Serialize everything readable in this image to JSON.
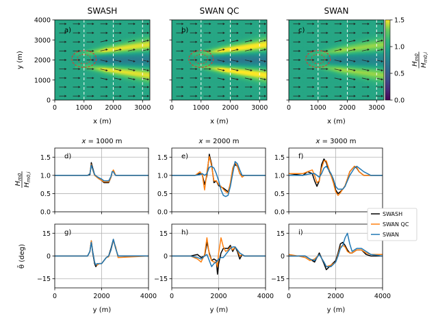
{
  "chart_data": [
    {
      "type": "heatmap",
      "panel": "a)",
      "title": "SWASH",
      "xlabel": "x (m)",
      "ylabel": "y (m)",
      "xlim": [
        0,
        3250
      ],
      "ylim": [
        0,
        4000
      ],
      "xticks": [
        0,
        1000,
        2000,
        3000
      ],
      "yticks": [
        0,
        1000,
        2000,
        3000,
        4000
      ],
      "ytick_labels": [
        "0",
        "1000",
        "2000",
        "3000",
        "4000"
      ],
      "x_ref_lines": [
        1000,
        2000,
        3000
      ],
      "eddy_center": [
        1000,
        2050
      ],
      "eddy_radius": 420,
      "jet_amp": 0.5
    },
    {
      "type": "heatmap",
      "panel": "b)",
      "title": "SWAN QC",
      "xlabel": "x (m)",
      "xlim": [
        0,
        3250
      ],
      "ylim": [
        0,
        4000
      ],
      "xticks": [
        0,
        1000,
        2000,
        3000
      ],
      "x_ref_lines": [
        1000,
        2000,
        3000
      ],
      "eddy_center": [
        1000,
        2050
      ],
      "eddy_radius": 420,
      "jet_amp": 0.55
    },
    {
      "type": "heatmap",
      "panel": "c)",
      "title": "SWAN",
      "xlabel": "x (m)",
      "xlim": [
        0,
        3250
      ],
      "ylim": [
        0,
        4000
      ],
      "xticks": [
        0,
        1000,
        2000,
        3000
      ],
      "x_ref_lines": [
        1000,
        2000,
        3000
      ],
      "eddy_center": [
        1000,
        2050
      ],
      "eddy_radius": 420,
      "jet_amp": 0.4
    },
    {
      "type": "colorbar",
      "label": "Hm0 / Hm0,i",
      "label_num": "H",
      "label_num_sub": "m0",
      "label_den": "H",
      "label_den_sub": "m0,i",
      "range": [
        0,
        1.5
      ],
      "ticks": [
        "0.0",
        "0.5",
        "1.0",
        "1.5"
      ],
      "colormap": "viridis"
    },
    {
      "type": "line",
      "panel": "d)",
      "title": "x = 1000 m",
      "title_var": "x",
      "title_rest": " = 1000 m",
      "ylabel_num": "H",
      "ylabel_num_sub": "m0",
      "ylabel_den": "H",
      "ylabel_den_sub": "m0,i",
      "xlim": [
        0,
        4000
      ],
      "ylim": [
        0,
        1.75
      ],
      "yticks": [
        "0.0",
        "0.5",
        "1.0",
        "1.5"
      ],
      "x": [
        0,
        1200,
        1400,
        1500,
        1560,
        1620,
        1700,
        1800,
        1900,
        2000,
        2100,
        2300,
        2400,
        2450,
        2500,
        2550,
        2600,
        2700,
        4000
      ],
      "series": [
        {
          "name": "SWASH",
          "values": [
            1.0,
            1.0,
            1.0,
            1.02,
            1.35,
            1.2,
            1.02,
            0.95,
            0.9,
            0.86,
            0.8,
            0.8,
            0.95,
            1.1,
            1.12,
            1.05,
            1.0,
            1.0,
            1.0
          ]
        },
        {
          "name": "SWAN QC",
          "values": [
            1.0,
            1.0,
            1.0,
            1.05,
            1.3,
            1.15,
            1.0,
            0.95,
            0.9,
            0.86,
            0.82,
            0.82,
            0.95,
            1.08,
            1.15,
            1.08,
            1.0,
            1.0,
            1.0
          ]
        },
        {
          "name": "SWAN",
          "values": [
            1.0,
            1.0,
            1.0,
            1.04,
            1.28,
            1.17,
            1.02,
            0.97,
            0.93,
            0.9,
            0.85,
            0.85,
            0.97,
            1.1,
            1.1,
            1.04,
            1.0,
            1.0,
            1.0
          ]
        }
      ]
    },
    {
      "type": "line",
      "panel": "e)",
      "title": "x = 2000 m",
      "title_var": "x",
      "title_rest": " = 2000 m",
      "xlim": [
        0,
        4000
      ],
      "ylim": [
        0,
        1.75
      ],
      "x": [
        0,
        1000,
        1200,
        1300,
        1400,
        1500,
        1600,
        1700,
        1800,
        1900,
        2000,
        2100,
        2200,
        2300,
        2400,
        2500,
        2600,
        2700,
        2800,
        2900,
        3000,
        3100,
        3200,
        3500,
        4000
      ],
      "series": [
        {
          "name": "SWASH",
          "values": [
            1.0,
            1.0,
            1.05,
            1.02,
            0.75,
            1.0,
            1.58,
            1.3,
            0.8,
            0.85,
            0.72,
            0.68,
            0.65,
            0.6,
            0.55,
            0.75,
            1.15,
            1.3,
            1.25,
            1.05,
            1.0,
            1.0,
            1.0,
            1.0,
            1.0
          ]
        },
        {
          "name": "SWAN QC",
          "values": [
            1.0,
            1.0,
            1.1,
            1.02,
            0.6,
            1.1,
            1.52,
            1.25,
            0.85,
            0.85,
            0.75,
            0.7,
            0.62,
            0.55,
            0.52,
            0.8,
            1.2,
            1.35,
            1.25,
            1.05,
            0.95,
            1.0,
            1.0,
            1.0,
            1.0
          ]
        },
        {
          "name": "SWAN",
          "values": [
            1.0,
            1.0,
            1.02,
            1.05,
            1.0,
            1.05,
            1.22,
            1.25,
            1.2,
            1.05,
            0.85,
            0.6,
            0.45,
            0.42,
            0.45,
            0.7,
            1.05,
            1.38,
            1.32,
            1.15,
            1.0,
            1.0,
            1.0,
            1.0,
            1.0
          ]
        }
      ]
    },
    {
      "type": "line",
      "panel": "f)",
      "title": "x = 3000 m",
      "title_var": "x",
      "title_rest": " = 3000 m",
      "xlim": [
        0,
        4000
      ],
      "ylim": [
        0,
        1.75
      ],
      "x": [
        0,
        600,
        800,
        1000,
        1100,
        1200,
        1300,
        1400,
        1500,
        1600,
        1700,
        1800,
        1900,
        2000,
        2100,
        2200,
        2300,
        2400,
        2500,
        2600,
        2800,
        2900,
        3000,
        3200,
        3500,
        4000
      ],
      "series": [
        {
          "name": "SWASH",
          "values": [
            1.05,
            1.0,
            1.1,
            1.05,
            0.85,
            0.7,
            0.85,
            1.3,
            1.45,
            1.35,
            1.15,
            1.0,
            0.85,
            0.6,
            0.5,
            0.55,
            0.62,
            0.7,
            0.9,
            1.1,
            1.25,
            1.2,
            1.1,
            1.0,
            1.0,
            1.0
          ]
        },
        {
          "name": "SWAN QC",
          "values": [
            1.05,
            1.05,
            1.1,
            1.15,
            1.0,
            0.8,
            0.85,
            1.2,
            1.4,
            1.4,
            1.2,
            1.0,
            0.8,
            0.55,
            0.45,
            0.52,
            0.62,
            0.72,
            0.9,
            1.1,
            1.25,
            1.22,
            1.1,
            1.0,
            1.0,
            1.0
          ]
        },
        {
          "name": "SWAN",
          "values": [
            1.0,
            1.0,
            1.03,
            1.05,
            1.05,
            1.0,
            0.95,
            1.05,
            1.2,
            1.25,
            1.15,
            1.05,
            0.9,
            0.7,
            0.62,
            0.62,
            0.62,
            0.7,
            0.85,
            1.0,
            1.2,
            1.25,
            1.2,
            1.1,
            1.0,
            1.0
          ]
        }
      ]
    },
    {
      "type": "line",
      "panel": "g)",
      "ylabel": "θ̄ (deg)",
      "xlabel": "y (m)",
      "xlim": [
        0,
        4000
      ],
      "ylim": [
        -21,
        21
      ],
      "yticks": [
        "−15",
        "0",
        "15"
      ],
      "xticks": [
        "0",
        "2000",
        "4000"
      ],
      "x": [
        0,
        1200,
        1400,
        1500,
        1560,
        1620,
        1700,
        1750,
        1800,
        1900,
        2000,
        2100,
        2200,
        2300,
        2400,
        2500,
        2600,
        2700,
        4000
      ],
      "series": [
        {
          "name": "SWASH",
          "values": [
            0,
            0,
            0,
            3,
            10,
            2,
            -5,
            -7,
            -6,
            -5,
            -5,
            -3,
            -1,
            0,
            5,
            11,
            5,
            0,
            0
          ]
        },
        {
          "name": "SWAN QC",
          "values": [
            0,
            0,
            0,
            3,
            10,
            3,
            -4,
            -6,
            -6,
            -5,
            -5,
            -3,
            -1,
            -0.5,
            4,
            10,
            6,
            -1,
            0
          ]
        },
        {
          "name": "SWAN",
          "values": [
            0,
            0,
            0,
            3,
            9,
            3,
            -4,
            -6,
            -5,
            -5,
            -5,
            -3,
            -1,
            0,
            4,
            11,
            5,
            0,
            0
          ]
        }
      ]
    },
    {
      "type": "line",
      "panel": "h)",
      "xlabel": "y (m)",
      "xlim": [
        0,
        4000
      ],
      "ylim": [
        -21,
        21
      ],
      "xticks": [
        "0",
        "2000",
        "4000"
      ],
      "x": [
        0,
        800,
        1100,
        1250,
        1400,
        1500,
        1600,
        1700,
        1800,
        1900,
        1950,
        2000,
        2100,
        2200,
        2300,
        2400,
        2500,
        2600,
        2700,
        2800,
        2900,
        3000,
        3100,
        3500,
        4000
      ],
      "series": [
        {
          "name": "SWASH",
          "values": [
            0,
            0,
            1,
            -1,
            0,
            9,
            2,
            -3,
            -2,
            -3,
            -12,
            -5,
            2,
            5,
            5,
            5,
            7,
            3,
            6,
            3,
            -2,
            1,
            0,
            0,
            0
          ]
        },
        {
          "name": "SWAN QC",
          "values": [
            0,
            0,
            -2,
            -4,
            1,
            12,
            1,
            -3,
            -4,
            -4,
            -7,
            2,
            12,
            6,
            3,
            4,
            6,
            4,
            6,
            4,
            0,
            1,
            0,
            0,
            0
          ]
        },
        {
          "name": "SWAN",
          "values": [
            0,
            0,
            -1,
            -2,
            0,
            1,
            -3,
            -7,
            -5,
            -4,
            -3,
            -2,
            -1,
            -1,
            1,
            3,
            5,
            6,
            6,
            4,
            2,
            1,
            0,
            0,
            0
          ]
        }
      ]
    },
    {
      "type": "line",
      "panel": "i)",
      "xlabel": "y (m)",
      "xlim": [
        0,
        4000
      ],
      "ylim": [
        -21,
        21
      ],
      "xticks": [
        "0",
        "2000",
        "4000"
      ],
      "x": [
        0,
        400,
        700,
        900,
        1100,
        1300,
        1500,
        1600,
        1800,
        2000,
        2100,
        2200,
        2300,
        2400,
        2500,
        2600,
        2700,
        2900,
        3100,
        3300,
        3500,
        4000
      ],
      "series": [
        {
          "name": "SWASH",
          "values": [
            0,
            0,
            0,
            -2,
            -4,
            2,
            -5,
            -9,
            -6,
            -3,
            2,
            8,
            9,
            7,
            4,
            2,
            2,
            4,
            4,
            1,
            0,
            0
          ]
        },
        {
          "name": "SWAN QC",
          "values": [
            1,
            0,
            -1,
            -3,
            -2,
            1,
            -4,
            -7,
            -6,
            -4,
            1,
            6,
            7,
            6,
            3,
            2,
            2,
            4,
            4,
            2,
            1,
            1
          ]
        },
        {
          "name": "SWAN",
          "values": [
            0,
            0,
            0,
            -2,
            -3,
            1,
            -4,
            -7,
            -7,
            -4,
            0,
            5,
            7,
            12,
            15,
            8,
            3,
            5,
            5,
            3,
            1,
            0
          ]
        }
      ]
    }
  ],
  "legend": {
    "placement": "right",
    "items": [
      {
        "label": "SWASH",
        "color": "#000000"
      },
      {
        "label": "SWAN QC",
        "color": "#ff7f0e"
      },
      {
        "label": "SWAN",
        "color": "#1f77b4"
      }
    ]
  },
  "colors": {
    "SWASH": "#000000",
    "SWAN QC": "#ff7f0e",
    "SWAN": "#1f77b4",
    "eddy": "#e8322a"
  }
}
